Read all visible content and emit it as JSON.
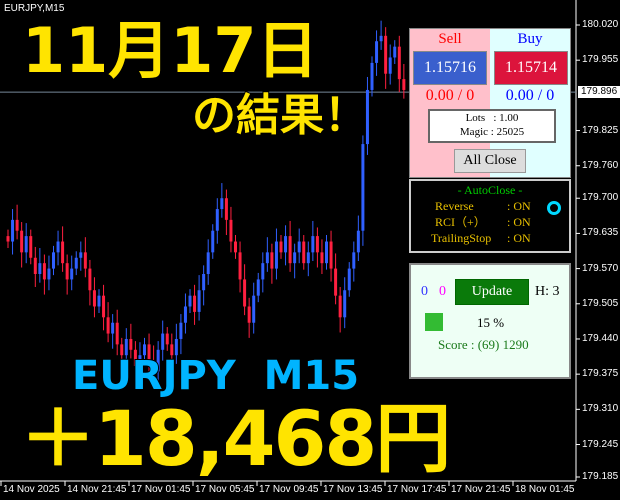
{
  "window": {
    "title": "EURJPY,M15"
  },
  "price_axis": {
    "labels": [
      "180.020",
      "179.955",
      "179.896",
      "179.825",
      "179.760",
      "179.700",
      "179.635",
      "179.570",
      "179.505",
      "179.440",
      "179.375",
      "179.310",
      "179.245",
      "179.185"
    ],
    "current_price": "179.896"
  },
  "time_axis": {
    "labels": [
      "14 Nov 2025",
      "14 Nov 21:45",
      "17 Nov 01:45",
      "17 Nov 05:45",
      "17 Nov 09:45",
      "17 Nov 13:45",
      "17 Nov 17:45",
      "17 Nov 21:45",
      "18 Nov 01:45"
    ]
  },
  "overlay": {
    "date": "11月17日",
    "result": "の結果！",
    "symbol": "EURJPY  M15",
    "profit": "＋18,468円"
  },
  "trade_panel": {
    "sell_label": "Sell",
    "buy_label": "Buy",
    "sell_price": "1.15716",
    "buy_price": "1.15714",
    "sell_pl": "0.00 / 0",
    "buy_pl": "0.00 / 0",
    "lots": "Lots   : 1.00",
    "magic": "Magic : 25025",
    "all_close": "All Close"
  },
  "autoclose": {
    "title": "- AutoClose -",
    "rows": [
      {
        "label": "Reverse",
        "value": ": ON"
      },
      {
        "label": "RCI（+）",
        "value": ": ON"
      },
      {
        "label": "TrailingStop",
        "value": ": ON"
      }
    ]
  },
  "update_panel": {
    "count_blue": "0",
    "count_magenta": "0",
    "update_label": "Update",
    "h_value": "H: 3",
    "percent": "15 %",
    "score": "Score : (69) 1290"
  },
  "colors": {
    "bull": "#3060ff",
    "bear": "#ff2040",
    "sell_btn": "#3a5fcd",
    "buy_btn": "#dc143c",
    "overlay_yellow": "#ffe400",
    "overlay_cyan": "#00b4ff"
  },
  "chart_data": {
    "type": "candlestick",
    "closes": [
      179.62,
      179.66,
      179.64,
      179.6,
      179.63,
      179.59,
      179.56,
      179.58,
      179.55,
      179.57,
      179.6,
      179.62,
      179.58,
      179.55,
      179.57,
      179.59,
      179.6,
      179.57,
      179.53,
      179.5,
      179.52,
      179.48,
      179.45,
      179.47,
      179.43,
      179.41,
      179.44,
      179.42,
      179.39,
      179.41,
      179.43,
      179.4,
      179.38,
      179.42,
      179.45,
      179.43,
      179.41,
      179.44,
      179.47,
      179.5,
      179.52,
      179.49,
      179.53,
      179.56,
      179.6,
      179.64,
      179.68,
      179.7,
      179.66,
      179.62,
      179.6,
      179.55,
      179.5,
      179.47,
      179.52,
      179.55,
      179.58,
      179.6,
      179.57,
      179.62,
      179.6,
      179.63,
      179.58,
      179.6,
      179.62,
      179.58,
      179.6,
      179.63,
      179.6,
      179.58,
      179.62,
      179.57,
      179.52,
      179.48,
      179.53,
      179.57,
      179.6,
      179.64,
      179.8,
      179.9,
      179.95,
      179.99,
      180.0,
      179.93,
      179.96,
      179.98,
      179.92,
      179.9
    ],
    "ylim": [
      179.185,
      180.02
    ]
  }
}
